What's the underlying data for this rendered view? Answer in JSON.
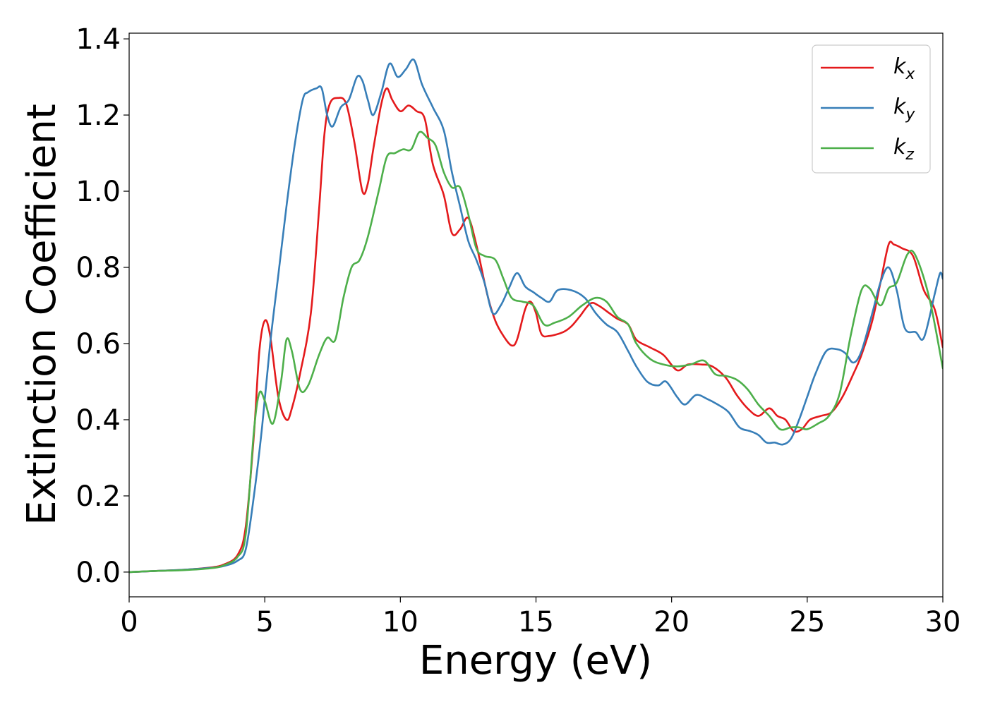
{
  "chart_data": {
    "type": "line",
    "title": "",
    "xlabel": "Energy (eV)",
    "ylabel": "Extinction Coefficient",
    "xlim": [
      0,
      30
    ],
    "ylim": [
      -0.065,
      1.415
    ],
    "x_ticks": [
      "0",
      "5",
      "10",
      "15",
      "20",
      "25",
      "30"
    ],
    "y_ticks": [
      "0.0",
      "0.2",
      "0.4",
      "0.6",
      "0.8",
      "1.0",
      "1.2",
      "1.4"
    ],
    "grid": false,
    "legend_position": "top-right",
    "series": [
      {
        "name": "k_x",
        "label_base": "k",
        "label_sub": "x",
        "color": "#e41a1c",
        "points": [
          [
            0,
            0
          ],
          [
            1,
            0.003
          ],
          [
            2,
            0.006
          ],
          [
            3,
            0.012
          ],
          [
            3.5,
            0.02
          ],
          [
            4.0,
            0.045
          ],
          [
            4.3,
            0.12
          ],
          [
            4.6,
            0.36
          ],
          [
            4.8,
            0.58
          ],
          [
            5.0,
            0.66
          ],
          [
            5.2,
            0.62
          ],
          [
            5.5,
            0.46
          ],
          [
            5.8,
            0.4
          ],
          [
            6.0,
            0.43
          ],
          [
            6.3,
            0.52
          ],
          [
            6.7,
            0.68
          ],
          [
            7.0,
            0.95
          ],
          [
            7.2,
            1.15
          ],
          [
            7.4,
            1.23
          ],
          [
            7.7,
            1.245
          ],
          [
            8.0,
            1.23
          ],
          [
            8.3,
            1.13
          ],
          [
            8.6,
            1.0
          ],
          [
            8.8,
            1.02
          ],
          [
            9.0,
            1.11
          ],
          [
            9.3,
            1.23
          ],
          [
            9.5,
            1.27
          ],
          [
            9.7,
            1.24
          ],
          [
            10.0,
            1.21
          ],
          [
            10.3,
            1.225
          ],
          [
            10.6,
            1.21
          ],
          [
            10.9,
            1.19
          ],
          [
            11.2,
            1.07
          ],
          [
            11.6,
            0.99
          ],
          [
            11.9,
            0.89
          ],
          [
            12.2,
            0.9
          ],
          [
            12.5,
            0.93
          ],
          [
            12.8,
            0.86
          ],
          [
            13.2,
            0.73
          ],
          [
            13.5,
            0.66
          ],
          [
            13.8,
            0.62
          ],
          [
            14.1,
            0.595
          ],
          [
            14.3,
            0.61
          ],
          [
            14.6,
            0.69
          ],
          [
            14.8,
            0.71
          ],
          [
            15.0,
            0.68
          ],
          [
            15.2,
            0.625
          ],
          [
            15.5,
            0.62
          ],
          [
            16.0,
            0.63
          ],
          [
            16.3,
            0.645
          ],
          [
            16.6,
            0.67
          ],
          [
            17.0,
            0.705
          ],
          [
            17.3,
            0.7
          ],
          [
            17.7,
            0.68
          ],
          [
            18.0,
            0.665
          ],
          [
            18.4,
            0.65
          ],
          [
            18.7,
            0.61
          ],
          [
            19.2,
            0.59
          ],
          [
            19.7,
            0.57
          ],
          [
            20.2,
            0.53
          ],
          [
            20.6,
            0.545
          ],
          [
            21.1,
            0.545
          ],
          [
            21.5,
            0.54
          ],
          [
            22.0,
            0.51
          ],
          [
            22.4,
            0.465
          ],
          [
            22.8,
            0.43
          ],
          [
            23.2,
            0.41
          ],
          [
            23.6,
            0.43
          ],
          [
            23.9,
            0.41
          ],
          [
            24.2,
            0.4
          ],
          [
            24.5,
            0.37
          ],
          [
            24.8,
            0.375
          ],
          [
            25.1,
            0.4
          ],
          [
            25.5,
            0.41
          ],
          [
            25.9,
            0.42
          ],
          [
            26.3,
            0.46
          ],
          [
            26.7,
            0.52
          ],
          [
            27.0,
            0.57
          ],
          [
            27.4,
            0.66
          ],
          [
            27.7,
            0.76
          ],
          [
            28.0,
            0.86
          ],
          [
            28.2,
            0.86
          ],
          [
            28.5,
            0.85
          ],
          [
            28.9,
            0.83
          ],
          [
            29.3,
            0.74
          ],
          [
            29.7,
            0.69
          ],
          [
            30.0,
            0.59
          ]
        ]
      },
      {
        "name": "k_y",
        "label_base": "k",
        "label_sub": "y",
        "color": "#377eb8",
        "points": [
          [
            0,
            0
          ],
          [
            1,
            0.003
          ],
          [
            2,
            0.006
          ],
          [
            3,
            0.011
          ],
          [
            3.5,
            0.016
          ],
          [
            4.0,
            0.03
          ],
          [
            4.3,
            0.06
          ],
          [
            4.6,
            0.2
          ],
          [
            4.9,
            0.38
          ],
          [
            5.2,
            0.6
          ],
          [
            5.5,
            0.78
          ],
          [
            5.8,
            0.96
          ],
          [
            6.1,
            1.12
          ],
          [
            6.4,
            1.24
          ],
          [
            6.6,
            1.26
          ],
          [
            6.9,
            1.27
          ],
          [
            7.1,
            1.27
          ],
          [
            7.3,
            1.2
          ],
          [
            7.5,
            1.17
          ],
          [
            7.8,
            1.22
          ],
          [
            8.1,
            1.24
          ],
          [
            8.4,
            1.3
          ],
          [
            8.6,
            1.29
          ],
          [
            8.8,
            1.24
          ],
          [
            9.0,
            1.2
          ],
          [
            9.3,
            1.26
          ],
          [
            9.6,
            1.335
          ],
          [
            9.9,
            1.3
          ],
          [
            10.2,
            1.32
          ],
          [
            10.5,
            1.345
          ],
          [
            10.8,
            1.28
          ],
          [
            11.2,
            1.22
          ],
          [
            11.6,
            1.16
          ],
          [
            11.9,
            1.05
          ],
          [
            12.2,
            0.96
          ],
          [
            12.5,
            0.87
          ],
          [
            12.8,
            0.82
          ],
          [
            13.1,
            0.76
          ],
          [
            13.4,
            0.68
          ],
          [
            13.7,
            0.7
          ],
          [
            14.0,
            0.745
          ],
          [
            14.3,
            0.785
          ],
          [
            14.6,
            0.75
          ],
          [
            14.9,
            0.735
          ],
          [
            15.2,
            0.72
          ],
          [
            15.5,
            0.71
          ],
          [
            15.8,
            0.74
          ],
          [
            16.3,
            0.74
          ],
          [
            16.8,
            0.72
          ],
          [
            17.2,
            0.68
          ],
          [
            17.6,
            0.65
          ],
          [
            18.0,
            0.63
          ],
          [
            18.4,
            0.58
          ],
          [
            18.7,
            0.54
          ],
          [
            19.1,
            0.5
          ],
          [
            19.5,
            0.49
          ],
          [
            19.8,
            0.5
          ],
          [
            20.2,
            0.46
          ],
          [
            20.5,
            0.44
          ],
          [
            20.9,
            0.465
          ],
          [
            21.3,
            0.455
          ],
          [
            21.7,
            0.44
          ],
          [
            22.1,
            0.42
          ],
          [
            22.5,
            0.38
          ],
          [
            22.9,
            0.37
          ],
          [
            23.2,
            0.36
          ],
          [
            23.5,
            0.34
          ],
          [
            23.8,
            0.34
          ],
          [
            24.1,
            0.335
          ],
          [
            24.4,
            0.35
          ],
          [
            24.7,
            0.4
          ],
          [
            25.0,
            0.46
          ],
          [
            25.3,
            0.52
          ],
          [
            25.7,
            0.58
          ],
          [
            26.1,
            0.585
          ],
          [
            26.4,
            0.575
          ],
          [
            26.7,
            0.55
          ],
          [
            27.0,
            0.58
          ],
          [
            27.4,
            0.68
          ],
          [
            27.7,
            0.76
          ],
          [
            28.0,
            0.8
          ],
          [
            28.3,
            0.74
          ],
          [
            28.6,
            0.64
          ],
          [
            29.0,
            0.63
          ],
          [
            29.3,
            0.615
          ],
          [
            29.7,
            0.73
          ],
          [
            29.9,
            0.785
          ],
          [
            30.0,
            0.77
          ]
        ]
      },
      {
        "name": "k_z",
        "label_base": "k",
        "label_sub": "z",
        "color": "#4daf4a",
        "points": [
          [
            0,
            0
          ],
          [
            1,
            0.003
          ],
          [
            2,
            0.005
          ],
          [
            3,
            0.01
          ],
          [
            3.5,
            0.018
          ],
          [
            4.0,
            0.04
          ],
          [
            4.3,
            0.1
          ],
          [
            4.6,
            0.37
          ],
          [
            4.8,
            0.47
          ],
          [
            5.0,
            0.45
          ],
          [
            5.3,
            0.39
          ],
          [
            5.6,
            0.5
          ],
          [
            5.8,
            0.61
          ],
          [
            6.0,
            0.58
          ],
          [
            6.3,
            0.48
          ],
          [
            6.6,
            0.49
          ],
          [
            7.0,
            0.57
          ],
          [
            7.3,
            0.615
          ],
          [
            7.6,
            0.61
          ],
          [
            7.9,
            0.72
          ],
          [
            8.2,
            0.8
          ],
          [
            8.5,
            0.82
          ],
          [
            8.8,
            0.88
          ],
          [
            9.2,
            1.0
          ],
          [
            9.5,
            1.09
          ],
          [
            9.8,
            1.1
          ],
          [
            10.1,
            1.11
          ],
          [
            10.4,
            1.11
          ],
          [
            10.7,
            1.155
          ],
          [
            11.0,
            1.14
          ],
          [
            11.3,
            1.12
          ],
          [
            11.6,
            1.05
          ],
          [
            11.9,
            1.01
          ],
          [
            12.2,
            1.01
          ],
          [
            12.5,
            0.94
          ],
          [
            12.8,
            0.85
          ],
          [
            13.1,
            0.83
          ],
          [
            13.5,
            0.82
          ],
          [
            13.8,
            0.77
          ],
          [
            14.1,
            0.72
          ],
          [
            14.5,
            0.71
          ],
          [
            14.9,
            0.7
          ],
          [
            15.3,
            0.65
          ],
          [
            15.7,
            0.655
          ],
          [
            16.2,
            0.67
          ],
          [
            16.7,
            0.7
          ],
          [
            17.2,
            0.72
          ],
          [
            17.6,
            0.71
          ],
          [
            18.0,
            0.67
          ],
          [
            18.4,
            0.65
          ],
          [
            18.7,
            0.6
          ],
          [
            19.2,
            0.56
          ],
          [
            19.7,
            0.545
          ],
          [
            20.2,
            0.54
          ],
          [
            20.7,
            0.545
          ],
          [
            21.2,
            0.555
          ],
          [
            21.6,
            0.52
          ],
          [
            22.0,
            0.515
          ],
          [
            22.4,
            0.505
          ],
          [
            22.8,
            0.48
          ],
          [
            23.2,
            0.44
          ],
          [
            23.6,
            0.41
          ],
          [
            24.0,
            0.375
          ],
          [
            24.4,
            0.38
          ],
          [
            24.7,
            0.38
          ],
          [
            25.0,
            0.375
          ],
          [
            25.4,
            0.39
          ],
          [
            25.8,
            0.41
          ],
          [
            26.2,
            0.47
          ],
          [
            26.6,
            0.62
          ],
          [
            27.0,
            0.74
          ],
          [
            27.3,
            0.745
          ],
          [
            27.7,
            0.7
          ],
          [
            28.0,
            0.745
          ],
          [
            28.3,
            0.76
          ],
          [
            28.7,
            0.835
          ],
          [
            29.0,
            0.83
          ],
          [
            29.5,
            0.72
          ],
          [
            30.0,
            0.535
          ]
        ]
      }
    ]
  }
}
